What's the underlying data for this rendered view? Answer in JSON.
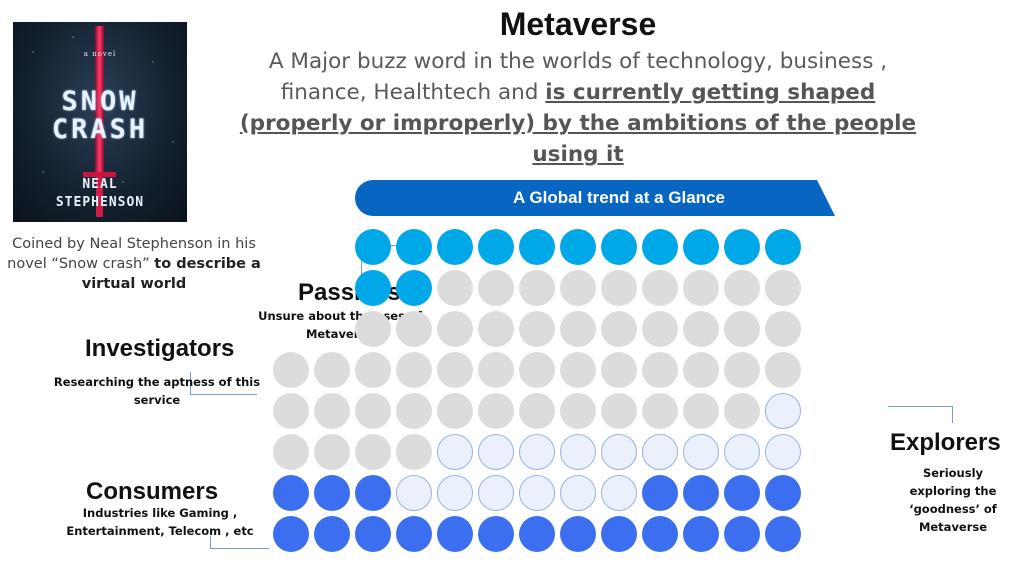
{
  "book": {
    "small_text": "a novel",
    "title_line1": "SNOW",
    "title_line2": "CRASH",
    "author_line1": "NEAL",
    "author_line2": "STEPHENSON"
  },
  "heading": {
    "title": "Metaverse",
    "subtitle_plain": "A Major buzz word in the worlds of technology, business , finance, Healthtech and ",
    "subtitle_emphasis": "is currently getting shaped (properly or improperly) by the ambitions of the people using it"
  },
  "banner": {
    "label": "A Global trend at a Glance",
    "color": "#0866c2"
  },
  "coined": {
    "plain": "Coined by Neal Stephenson in his novel “Snow crash” ",
    "bold": "to describe a virtual world"
  },
  "segments": {
    "passives": {
      "title": "Passives",
      "description": "Unsure about the uses of Metaverse",
      "color": "#00a8e8"
    },
    "investigators": {
      "title": "Investigators",
      "description": "Researching the aptness of this service",
      "color": "#dcdcdc"
    },
    "explorers": {
      "title": "Explorers",
      "description": "Seriously exploring the ‘goodness’ of Metaverse",
      "color": "#eaf1fd"
    },
    "consumers": {
      "title": "Consumers",
      "description": "Industries like Gaming , Entertainment, Telecom , etc",
      "color": "#3c6ff0"
    }
  },
  "dot_grid": {
    "rows": [
      "..PPPPPPPPPPP",
      "..PPIIIIIIIII",
      "..IIIIIIIIIII",
      "IIIIIIIIIIIII",
      "IIIIIIIIIIIIE",
      "IIIIEEEEEEEEE",
      "CCCEEEEEECCCC",
      "CCCCCCCCCCCCC"
    ]
  }
}
